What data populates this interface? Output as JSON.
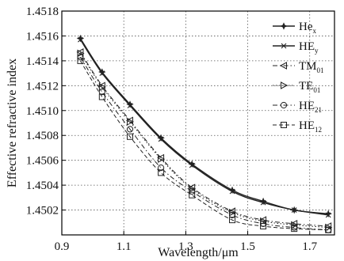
{
  "chart_data": {
    "type": "line",
    "title": "",
    "xlabel": "Wavelength/μm",
    "ylabel": "Effective refractive index",
    "xlim": [
      0.9,
      1.78
    ],
    "ylim": [
      1.45,
      1.4518
    ],
    "x_ticks": [
      0.9,
      1.1,
      1.3,
      1.5,
      1.7
    ],
    "x_tick_labels": [
      "0.9",
      "1.1",
      "1.3",
      "1.5",
      "1.7"
    ],
    "y_ticks": [
      1.4502,
      1.4504,
      1.4506,
      1.4508,
      1.451,
      1.4512,
      1.4514,
      1.4516,
      1.4518
    ],
    "y_tick_labels": [
      "1.4502",
      "1.4504",
      "1.4506",
      "1.4508",
      "1.4510",
      "1.4512",
      "1.4514",
      "1.4516",
      "1.4518"
    ],
    "grid": "dotted",
    "legend_position": "top-right",
    "series": [
      {
        "name": "He",
        "sub": "x",
        "marker": "star",
        "dash": "solid",
        "x": [
          0.96,
          1.03,
          1.12,
          1.22,
          1.32,
          1.45,
          1.55,
          1.65,
          1.76
        ],
        "y": [
          1.45158,
          1.45131,
          1.45105,
          1.45078,
          1.45057,
          1.45036,
          1.45027,
          1.4502,
          1.45017
        ]
      },
      {
        "name": "HE",
        "sub": "y",
        "marker": "cross",
        "dash": "solid",
        "x": [
          0.96,
          1.03,
          1.12,
          1.22,
          1.32,
          1.45,
          1.55,
          1.65,
          1.76
        ],
        "y": [
          1.45157,
          1.4513,
          1.45104,
          1.45077,
          1.45056,
          1.45035,
          1.45026,
          1.4502,
          1.45016
        ]
      },
      {
        "name": "TM",
        "sub": "01",
        "marker": "tri-left",
        "dash": "dashdot",
        "x": [
          0.96,
          1.03,
          1.12,
          1.22,
          1.32,
          1.45,
          1.55,
          1.65,
          1.76
        ],
        "y": [
          1.45147,
          1.4512,
          1.45092,
          1.45062,
          1.45038,
          1.45019,
          1.45012,
          1.45009,
          1.45007
        ]
      },
      {
        "name": "TE",
        "sub": "01",
        "marker": "tri-right",
        "dash": "dotted",
        "x": [
          0.96,
          1.03,
          1.12,
          1.22,
          1.32,
          1.45,
          1.55,
          1.65,
          1.76
        ],
        "y": [
          1.45146,
          1.45119,
          1.45091,
          1.45061,
          1.45037,
          1.45018,
          1.45011,
          1.45008,
          1.45006
        ]
      },
      {
        "name": "HE",
        "sub": "21",
        "marker": "circle",
        "dash": "dashdot",
        "x": [
          0.96,
          1.03,
          1.12,
          1.22,
          1.32,
          1.45,
          1.55,
          1.65,
          1.76
        ],
        "y": [
          1.45143,
          1.45115,
          1.45085,
          1.45054,
          1.45035,
          1.45016,
          1.45009,
          1.45006,
          1.45004
        ]
      },
      {
        "name": "HE",
        "sub": "12",
        "marker": "square",
        "dash": "dashed",
        "x": [
          0.96,
          1.03,
          1.12,
          1.22,
          1.32,
          1.45,
          1.55,
          1.65,
          1.76
        ],
        "y": [
          1.4514,
          1.45111,
          1.45079,
          1.4505,
          1.45032,
          1.45012,
          1.45007,
          1.45005,
          1.45004
        ]
      }
    ]
  }
}
